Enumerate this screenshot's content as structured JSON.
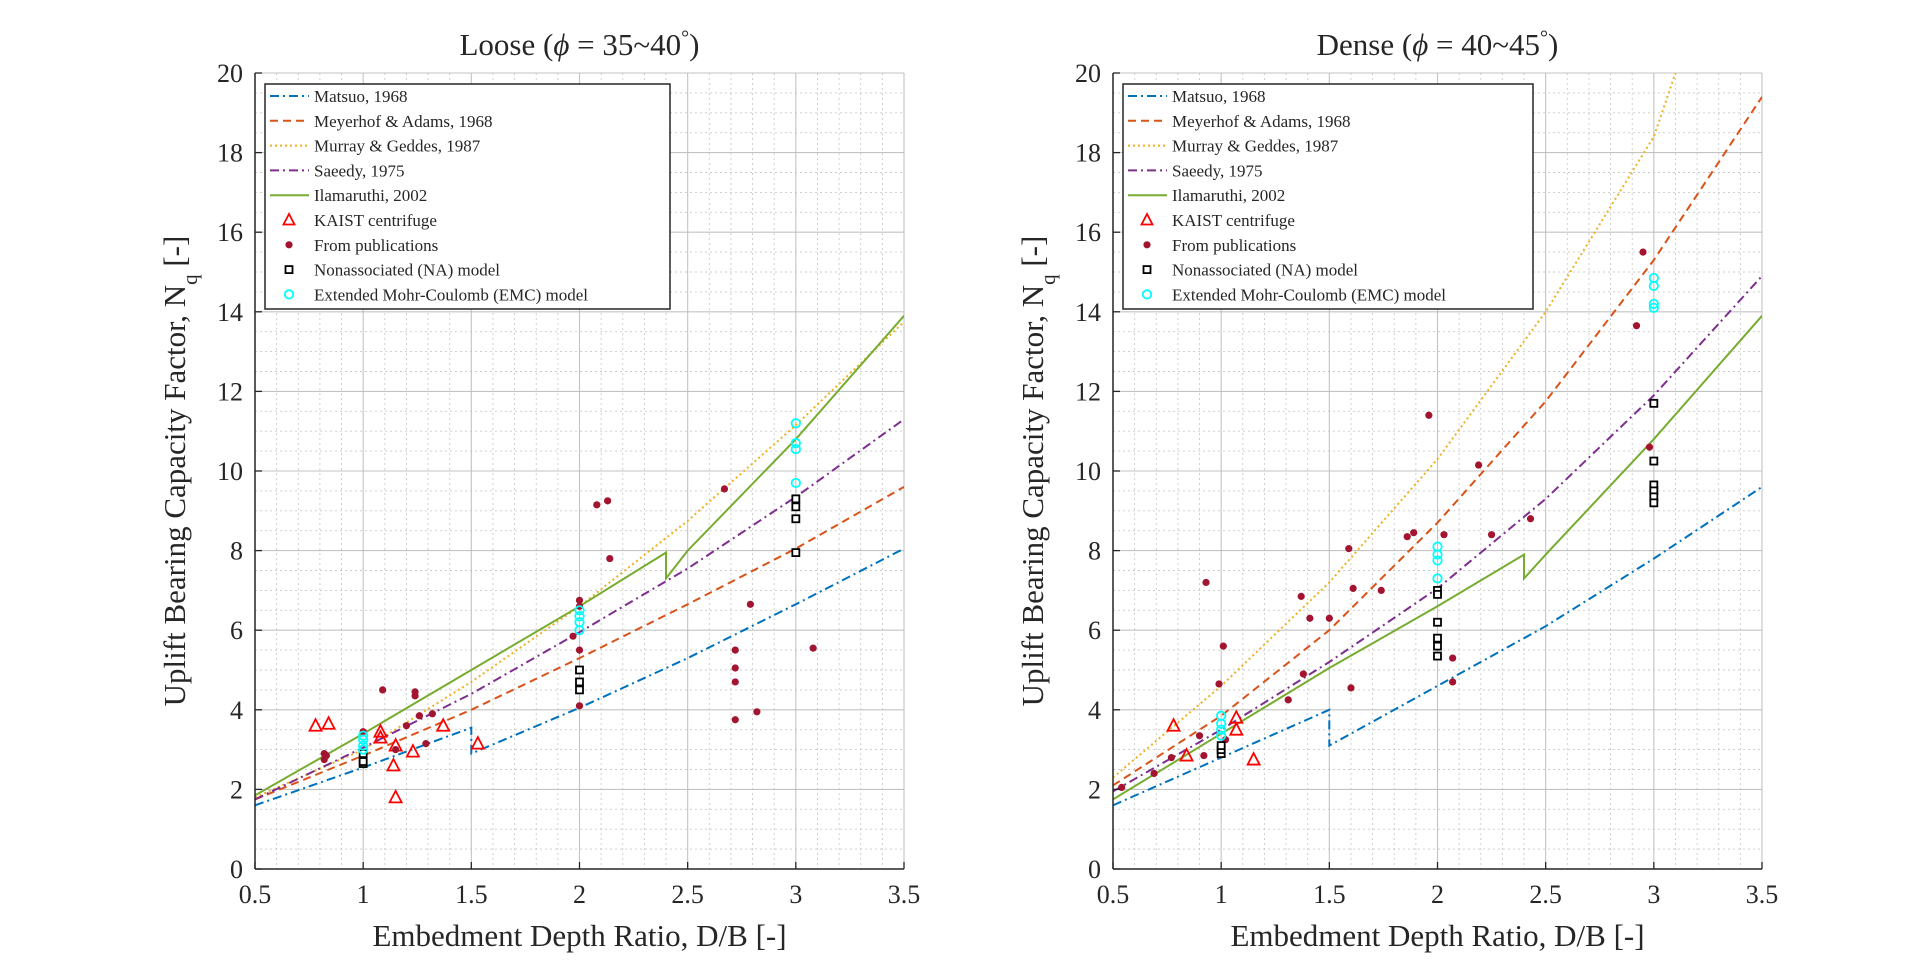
{
  "colors": {
    "matsuo": "#0072BD",
    "meyerhof": "#D95319",
    "murray": "#EDB120",
    "saeedy": "#7E2F8E",
    "ilamaruthi": "#77AC30",
    "kaist": "#FF0000",
    "publications": "#A2142F",
    "na": "#000000",
    "emc": "#00FFFF",
    "grid": "#bdbdbd",
    "axis": "#262626"
  },
  "chart_data": [
    {
      "type": "line",
      "title": "Loose (ϕ = 35~40°)",
      "title_text": "Loose (",
      "title_phi": "ϕ",
      "title_rest": " = 35~40",
      "title_deg": "°",
      "title_close": ")",
      "xlabel": "Embedment Depth Ratio, D/B [-]",
      "ylabel": "Uplift Bearing Capacity Factor, N",
      "ylabel_sub": "q",
      "ylabel_end": " [-]",
      "xlim": [
        0.5,
        3.5
      ],
      "ylim": [
        0,
        20
      ],
      "xticks": [
        0.5,
        1,
        1.5,
        2,
        2.5,
        3,
        3.5
      ],
      "xtick_labels": [
        "0.5",
        "1",
        "1.5",
        "2",
        "2.5",
        "3",
        "3.5"
      ],
      "yticks": [
        0,
        2,
        4,
        6,
        8,
        10,
        12,
        14,
        16,
        18,
        20
      ],
      "ytick_labels": [
        "0",
        "2",
        "4",
        "6",
        "8",
        "10",
        "12",
        "14",
        "16",
        "18",
        "20"
      ],
      "grid": true,
      "legend_position": "top-left",
      "series": [
        {
          "name": "Matsuo, 1968",
          "key": "matsuo",
          "style": "dashdot",
          "x": [
            0.5,
            1.0,
            1.5,
            1.5,
            2.0,
            2.5,
            3.0,
            3.5
          ],
          "y": [
            1.6,
            2.55,
            3.55,
            2.9,
            4.05,
            5.3,
            6.65,
            8.05
          ]
        },
        {
          "name": "Meyerhof & Adams, 1968",
          "key": "meyerhof",
          "style": "dashed",
          "x": [
            0.5,
            1.0,
            1.5,
            2.0,
            2.5,
            3.0,
            3.5
          ],
          "y": [
            1.75,
            2.85,
            4.0,
            5.3,
            6.65,
            8.05,
            9.6
          ]
        },
        {
          "name": "Murray & Geddes, 1987",
          "key": "murray",
          "style": "dotted",
          "x": [
            0.5,
            1.0,
            1.5,
            2.0,
            2.5,
            3.0,
            3.5
          ],
          "y": [
            1.8,
            3.0,
            4.7,
            6.6,
            8.75,
            11.15,
            13.75
          ]
        },
        {
          "name": "Saeedy, 1975",
          "key": "saeedy",
          "style": "dashdot",
          "x": [
            0.5,
            1.0,
            1.5,
            2.0,
            2.5,
            3.0,
            3.5
          ],
          "y": [
            1.75,
            3.05,
            4.4,
            5.95,
            7.55,
            9.35,
            11.3
          ]
        },
        {
          "name": "Ilamaruthi, 2002",
          "key": "ilamaruthi",
          "style": "solid",
          "x": [
            0.5,
            1.0,
            1.5,
            2.0,
            2.4,
            2.4,
            2.5,
            3.0,
            3.5
          ],
          "y": [
            1.85,
            3.4,
            5.0,
            6.6,
            7.95,
            7.3,
            8.0,
            10.8,
            13.9
          ]
        }
      ],
      "scatter": [
        {
          "name": "KAIST centrifuge",
          "key": "kaist",
          "marker": "triangle",
          "points": [
            [
              0.78,
              3.6
            ],
            [
              0.84,
              3.65
            ],
            [
              1.08,
              3.45
            ],
            [
              1.08,
              3.3
            ],
            [
              1.14,
              2.6
            ],
            [
              1.15,
              1.8
            ],
            [
              1.15,
              3.1
            ],
            [
              1.23,
              2.95
            ],
            [
              1.37,
              3.6
            ],
            [
              1.53,
              3.15
            ]
          ]
        },
        {
          "name": "From publications",
          "key": "publications",
          "marker": "dot",
          "points": [
            [
              0.82,
              2.9
            ],
            [
              0.83,
              2.85
            ],
            [
              0.82,
              2.75
            ],
            [
              1.0,
              3.45
            ],
            [
              1.09,
              4.5
            ],
            [
              1.15,
              3.0
            ],
            [
              1.2,
              3.6
            ],
            [
              1.24,
              4.45
            ],
            [
              1.24,
              4.35
            ],
            [
              1.26,
              3.85
            ],
            [
              1.29,
              3.15
            ],
            [
              1.32,
              3.9
            ],
            [
              1.97,
              5.85
            ],
            [
              2.0,
              6.75
            ],
            [
              2.0,
              6.6
            ],
            [
              2.0,
              5.5
            ],
            [
              2.0,
              4.1
            ],
            [
              2.08,
              9.15
            ],
            [
              2.13,
              9.25
            ],
            [
              2.14,
              7.8
            ],
            [
              2.67,
              9.55
            ],
            [
              2.72,
              5.5
            ],
            [
              2.72,
              5.05
            ],
            [
              2.72,
              4.7
            ],
            [
              2.72,
              3.75
            ],
            [
              2.79,
              6.65
            ],
            [
              2.82,
              3.95
            ],
            [
              3.08,
              5.55
            ]
          ]
        },
        {
          "name": "Nonassociated (NA) model",
          "key": "na",
          "marker": "square",
          "points": [
            [
              1.0,
              2.65
            ],
            [
              1.0,
              2.7
            ],
            [
              1.0,
              2.9
            ],
            [
              2.0,
              5.0
            ],
            [
              2.0,
              4.7
            ],
            [
              2.0,
              4.5
            ],
            [
              3.0,
              9.3
            ],
            [
              3.0,
              9.1
            ],
            [
              3.0,
              8.8
            ],
            [
              3.0,
              7.95
            ]
          ]
        },
        {
          "name": "Extended Mohr-Coulomb (EMC) model",
          "key": "emc",
          "marker": "circle",
          "points": [
            [
              1.0,
              3.0
            ],
            [
              1.0,
              3.1
            ],
            [
              1.0,
              3.25
            ],
            [
              1.0,
              3.35
            ],
            [
              2.0,
              6.0
            ],
            [
              2.0,
              6.2
            ],
            [
              2.0,
              6.35
            ],
            [
              2.0,
              6.5
            ],
            [
              3.0,
              11.2
            ],
            [
              3.0,
              10.7
            ],
            [
              3.0,
              10.55
            ],
            [
              3.0,
              9.7
            ]
          ]
        }
      ]
    },
    {
      "type": "line",
      "title": "Dense (ϕ = 40~45°)",
      "title_text": "Dense (",
      "title_phi": "ϕ",
      "title_rest": " = 40~45",
      "title_deg": "°",
      "title_close": ")",
      "xlabel": "Embedment Depth Ratio, D/B [-]",
      "ylabel": "Uplift Bearing Capacity Factor, N",
      "ylabel_sub": "q",
      "ylabel_end": " [-]",
      "xlim": [
        0.5,
        3.5
      ],
      "ylim": [
        0,
        20
      ],
      "xticks": [
        0.5,
        1,
        1.5,
        2,
        2.5,
        3,
        3.5
      ],
      "xtick_labels": [
        "0.5",
        "1",
        "1.5",
        "2",
        "2.5",
        "3",
        "3.5"
      ],
      "yticks": [
        0,
        2,
        4,
        6,
        8,
        10,
        12,
        14,
        16,
        18,
        20
      ],
      "ytick_labels": [
        "0",
        "2",
        "4",
        "6",
        "8",
        "10",
        "12",
        "14",
        "16",
        "18",
        "20"
      ],
      "grid": true,
      "legend_position": "top-left",
      "series": [
        {
          "name": "Matsuo, 1968",
          "key": "matsuo",
          "style": "dashdot",
          "x": [
            0.5,
            1.0,
            1.5,
            1.5,
            2.0,
            2.5,
            3.0,
            3.5
          ],
          "y": [
            1.6,
            2.8,
            4.0,
            3.1,
            4.6,
            6.1,
            7.8,
            9.6
          ]
        },
        {
          "name": "Meyerhof & Adams, 1968",
          "key": "meyerhof",
          "style": "dashed",
          "x": [
            0.5,
            1.0,
            1.5,
            2.0,
            2.5,
            3.0,
            3.5
          ],
          "y": [
            2.1,
            3.85,
            6.0,
            8.7,
            11.75,
            15.3,
            19.4
          ]
        },
        {
          "name": "Murray & Geddes, 1987",
          "key": "murray",
          "style": "dotted",
          "x": [
            0.5,
            1.0,
            1.5,
            2.0,
            2.5,
            3.0,
            3.1
          ],
          "y": [
            2.3,
            4.6,
            7.2,
            10.3,
            14.0,
            18.4,
            20.0
          ]
        },
        {
          "name": "Saeedy, 1975",
          "key": "saeedy",
          "style": "dashdot",
          "x": [
            0.5,
            1.0,
            1.5,
            2.0,
            2.5,
            3.0,
            3.5
          ],
          "y": [
            1.95,
            3.5,
            5.2,
            7.05,
            9.3,
            11.9,
            14.9
          ]
        },
        {
          "name": "Ilamaruthi, 2002",
          "key": "ilamaruthi",
          "style": "solid",
          "x": [
            0.5,
            1.0,
            1.5,
            2.0,
            2.4,
            2.4,
            2.5,
            3.0,
            3.5
          ],
          "y": [
            1.75,
            3.4,
            5.05,
            6.6,
            7.9,
            7.3,
            7.9,
            10.8,
            13.9
          ]
        }
      ],
      "scatter": [
        {
          "name": "KAIST centrifuge",
          "key": "kaist",
          "marker": "triangle",
          "points": [
            [
              0.78,
              3.6
            ],
            [
              0.84,
              2.85
            ],
            [
              1.07,
              3.8
            ],
            [
              1.07,
              3.5
            ],
            [
              1.15,
              2.75
            ]
          ]
        },
        {
          "name": "From publications",
          "key": "publications",
          "marker": "dot",
          "points": [
            [
              0.54,
              2.05
            ],
            [
              0.69,
              2.4
            ],
            [
              0.77,
              2.8
            ],
            [
              0.9,
              3.35
            ],
            [
              0.92,
              2.85
            ],
            [
              0.93,
              7.2
            ],
            [
              0.99,
              4.65
            ],
            [
              1.01,
              5.6
            ],
            [
              1.02,
              3.25
            ],
            [
              1.31,
              4.25
            ],
            [
              1.37,
              6.85
            ],
            [
              1.38,
              4.9
            ],
            [
              1.41,
              6.3
            ],
            [
              1.5,
              6.3
            ],
            [
              1.59,
              8.05
            ],
            [
              1.6,
              4.55
            ],
            [
              1.61,
              7.05
            ],
            [
              1.74,
              7.0
            ],
            [
              1.86,
              8.35
            ],
            [
              1.89,
              8.45
            ],
            [
              1.96,
              11.4
            ],
            [
              2.03,
              8.4
            ],
            [
              2.07,
              5.3
            ],
            [
              2.07,
              4.7
            ],
            [
              2.19,
              10.15
            ],
            [
              2.25,
              8.4
            ],
            [
              2.43,
              8.8
            ],
            [
              2.92,
              13.65
            ],
            [
              2.95,
              15.5
            ],
            [
              2.98,
              10.6
            ]
          ]
        },
        {
          "name": "Nonassociated (NA) model",
          "key": "na",
          "marker": "square",
          "points": [
            [
              1.0,
              2.9
            ],
            [
              1.0,
              3.0
            ],
            [
              1.0,
              3.1
            ],
            [
              2.0,
              7.0
            ],
            [
              2.0,
              6.9
            ],
            [
              2.0,
              6.2
            ],
            [
              2.0,
              5.8
            ],
            [
              2.0,
              5.6
            ],
            [
              2.0,
              5.35
            ],
            [
              3.0,
              11.7
            ],
            [
              3.0,
              10.25
            ],
            [
              3.0,
              9.65
            ],
            [
              3.0,
              9.5
            ],
            [
              3.0,
              9.35
            ],
            [
              3.0,
              9.2
            ]
          ]
        },
        {
          "name": "Extended Mohr-Coulomb (EMC) model",
          "key": "emc",
          "marker": "circle",
          "points": [
            [
              1.0,
              3.35
            ],
            [
              1.0,
              3.5
            ],
            [
              1.0,
              3.65
            ],
            [
              1.0,
              3.85
            ],
            [
              2.0,
              8.1
            ],
            [
              2.0,
              7.9
            ],
            [
              2.0,
              7.75
            ],
            [
              2.0,
              7.3
            ],
            [
              3.0,
              14.85
            ],
            [
              3.0,
              14.65
            ],
            [
              3.0,
              14.2
            ],
            [
              3.0,
              14.1
            ]
          ]
        }
      ]
    }
  ]
}
